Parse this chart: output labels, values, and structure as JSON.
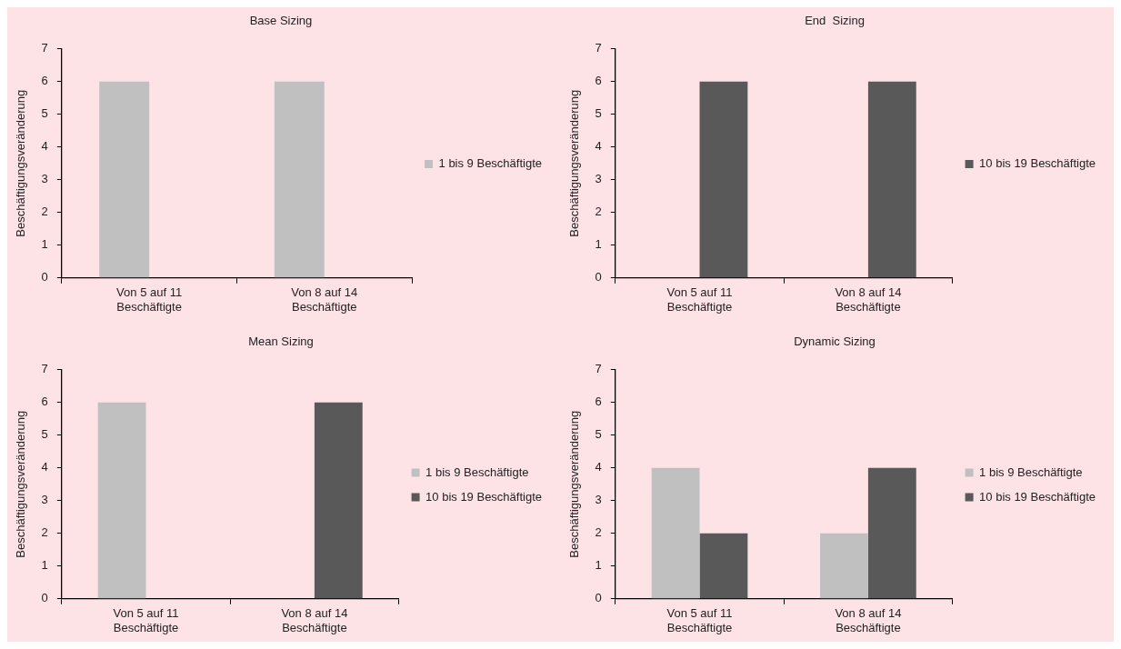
{
  "chart_data": [
    {
      "type": "bar",
      "title": "Base Sizing",
      "ylabel": "Beschäftigungsveränderung",
      "categories": [
        "Von 5 auf 11\nBeschäftigte",
        "Von 8 auf 14\nBeschäftigte"
      ],
      "series": [
        {
          "name": "1 bis 9 Beschäftigte",
          "color": "#c0c0c0",
          "values": [
            6,
            6
          ]
        },
        {
          "color": "#595959",
          "values": [
            null,
            null
          ]
        }
      ],
      "ylim": [
        0,
        7
      ],
      "yticks": [
        0,
        1,
        2,
        3,
        4,
        5,
        6,
        7
      ],
      "grid": false,
      "legend": "right"
    },
    {
      "type": "bar",
      "title": "End  Sizing",
      "ylabel": "Beschäftigungsveränderung",
      "categories": [
        "Von 5 auf 11\nBeschäftigte",
        "Von 8 auf 14\nBeschäftigte"
      ],
      "series": [
        {
          "color": "#c0c0c0",
          "values": [
            null,
            null
          ]
        },
        {
          "name": "10 bis 19 Beschäftigte",
          "color": "#595959",
          "values": [
            6,
            6
          ]
        }
      ],
      "ylim": [
        0,
        7
      ],
      "yticks": [
        0,
        1,
        2,
        3,
        4,
        5,
        6,
        7
      ],
      "grid": false,
      "legend": "right"
    },
    {
      "type": "bar",
      "title": "Mean Sizing",
      "ylabel": "Beschäftigungsveränderung",
      "categories": [
        "Von 5 auf 11\nBeschäftigte",
        "Von 8 auf 14\nBeschäftigte"
      ],
      "series": [
        {
          "name": "1 bis 9 Beschäftigte",
          "color": "#c0c0c0",
          "values": [
            6,
            null
          ]
        },
        {
          "name": "10 bis 19 Beschäftigte",
          "color": "#595959",
          "values": [
            null,
            6
          ]
        }
      ],
      "ylim": [
        0,
        7
      ],
      "yticks": [
        0,
        1,
        2,
        3,
        4,
        5,
        6,
        7
      ],
      "grid": false,
      "legend": "right"
    },
    {
      "type": "bar",
      "title": "Dynamic Sizing",
      "ylabel": "Beschäftigungsveränderung",
      "categories": [
        "Von 5 auf 11\nBeschäftigte",
        "Von 8 auf 14\nBeschäftigte"
      ],
      "series": [
        {
          "name": "1 bis 9 Beschäftigte",
          "color": "#c0c0c0",
          "values": [
            4,
            2
          ]
        },
        {
          "name": "10 bis 19 Beschäftigte",
          "color": "#595959",
          "values": [
            2,
            4
          ]
        }
      ],
      "ylim": [
        0,
        7
      ],
      "yticks": [
        0,
        1,
        2,
        3,
        4,
        5,
        6,
        7
      ],
      "grid": false,
      "legend": "right"
    }
  ]
}
